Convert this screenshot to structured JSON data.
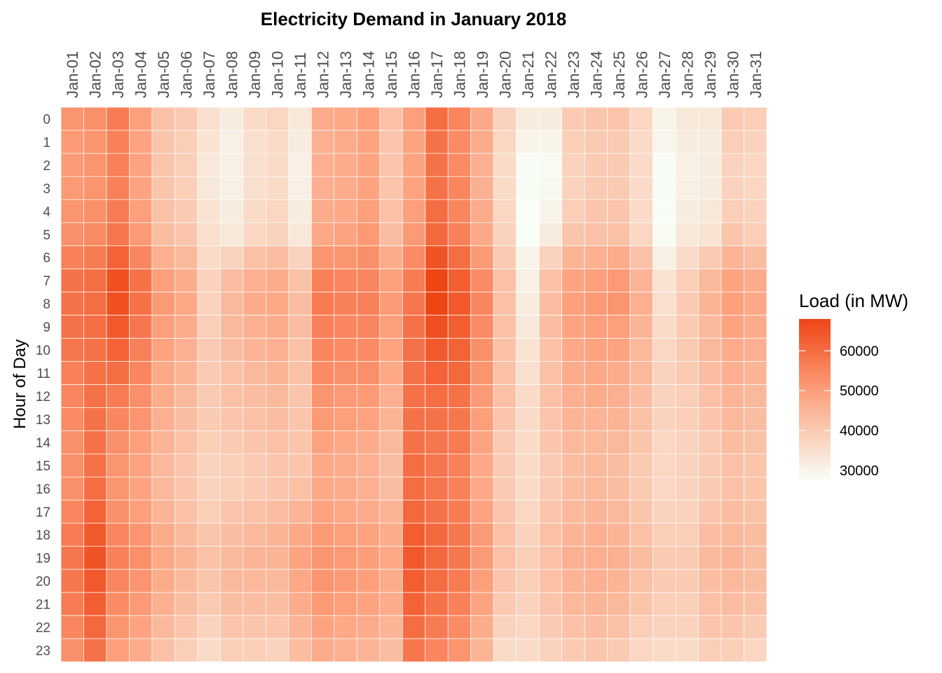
{
  "chart_data": {
    "type": "heatmap",
    "title": "Electricity Demand in January 2018",
    "xlabel": "",
    "ylabel": "Hour of Day",
    "x_categories": [
      "Jan-01",
      "Jan-02",
      "Jan-03",
      "Jan-04",
      "Jan-05",
      "Jan-06",
      "Jan-07",
      "Jan-08",
      "Jan-09",
      "Jan-10",
      "Jan-11",
      "Jan-12",
      "Jan-13",
      "Jan-14",
      "Jan-15",
      "Jan-16",
      "Jan-17",
      "Jan-18",
      "Jan-19",
      "Jan-20",
      "Jan-21",
      "Jan-22",
      "Jan-23",
      "Jan-24",
      "Jan-25",
      "Jan-26",
      "Jan-27",
      "Jan-28",
      "Jan-29",
      "Jan-30",
      "Jan-31"
    ],
    "y_categories": [
      "0",
      "1",
      "2",
      "3",
      "4",
      "5",
      "6",
      "7",
      "8",
      "9",
      "10",
      "11",
      "12",
      "13",
      "14",
      "15",
      "16",
      "17",
      "18",
      "19",
      "20",
      "21",
      "22",
      "23"
    ],
    "values": [
      [
        52000,
        53000,
        57000,
        50000,
        42000,
        40000,
        35000,
        32000,
        36000,
        37000,
        33000,
        47000,
        48000,
        50000,
        42000,
        50000,
        60000,
        55000,
        48000,
        38000,
        32000,
        32000,
        40000,
        41000,
        41000,
        37000,
        30000,
        33000,
        33000,
        40000,
        39000
      ],
      [
        51000,
        52000,
        56000,
        49000,
        41000,
        39000,
        34000,
        31000,
        35000,
        36000,
        32000,
        46000,
        47000,
        49000,
        41000,
        49000,
        59000,
        54000,
        47000,
        37000,
        30000,
        30000,
        39000,
        40000,
        40000,
        36000,
        29500,
        32000,
        32000,
        39000,
        38000
      ],
      [
        51000,
        52000,
        56000,
        49000,
        41000,
        39000,
        33000,
        31000,
        35000,
        36000,
        31000,
        46000,
        47000,
        49000,
        41000,
        49000,
        59000,
        54000,
        46000,
        36000,
        28000,
        28500,
        38000,
        40000,
        40000,
        36000,
        28000,
        31000,
        32000,
        38000,
        37000
      ],
      [
        51000,
        52000,
        56000,
        49000,
        41000,
        39000,
        33000,
        31000,
        35000,
        36000,
        31000,
        46000,
        47000,
        49000,
        41000,
        49000,
        59000,
        55000,
        46000,
        36000,
        28000,
        29000,
        38000,
        40000,
        40000,
        36000,
        28000,
        31000,
        32000,
        38000,
        37000
      ],
      [
        52000,
        53000,
        57000,
        50000,
        42000,
        40000,
        34000,
        32000,
        36000,
        37000,
        32000,
        47000,
        48000,
        50000,
        42000,
        50000,
        60000,
        55000,
        47000,
        37000,
        27500,
        30000,
        39000,
        41000,
        41000,
        36000,
        28000,
        32000,
        33000,
        39000,
        38000
      ],
      [
        53000,
        54000,
        58000,
        51000,
        43000,
        41000,
        35000,
        33000,
        37000,
        38000,
        33000,
        48000,
        49000,
        51000,
        43000,
        51000,
        61000,
        56000,
        48000,
        38000,
        27500,
        32000,
        41000,
        42000,
        42000,
        37000,
        28500,
        33000,
        34000,
        41000,
        39000
      ],
      [
        56000,
        57000,
        62000,
        55000,
        46000,
        44000,
        36000,
        38000,
        42000,
        43000,
        38000,
        52000,
        52000,
        53000,
        47000,
        54000,
        65000,
        60000,
        51000,
        40000,
        30000,
        38000,
        45000,
        46000,
        47000,
        42000,
        31000,
        36000,
        40000,
        45000,
        43000
      ],
      [
        59000,
        60000,
        66000,
        59000,
        50000,
        47000,
        38000,
        43000,
        46000,
        47000,
        42000,
        56000,
        55000,
        55000,
        50000,
        57000,
        68000,
        63000,
        54000,
        42000,
        31000,
        42000,
        49000,
        50000,
        51000,
        45000,
        34000,
        39000,
        44000,
        49000,
        47000
      ],
      [
        59000,
        60000,
        66000,
        59000,
        51000,
        48000,
        38000,
        44000,
        47000,
        48000,
        43000,
        57000,
        56000,
        56000,
        51000,
        58000,
        68000,
        64000,
        55000,
        42000,
        32000,
        43000,
        50000,
        51000,
        52000,
        46000,
        35000,
        40000,
        45000,
        50000,
        48000
      ],
      [
        59000,
        60000,
        64000,
        58000,
        50000,
        47000,
        39000,
        44000,
        46000,
        47000,
        43000,
        56000,
        55000,
        55000,
        50000,
        59000,
        66000,
        63000,
        54000,
        42000,
        33000,
        43000,
        49000,
        50000,
        50000,
        45000,
        36000,
        40000,
        44000,
        49000,
        47000
      ],
      [
        58000,
        59000,
        62000,
        56000,
        49000,
        46000,
        40000,
        43000,
        45000,
        46000,
        42000,
        55000,
        54000,
        54000,
        49000,
        59000,
        64000,
        62000,
        53000,
        42000,
        34000,
        42000,
        48000,
        49000,
        49000,
        44000,
        37000,
        40000,
        44000,
        47000,
        46000
      ],
      [
        56000,
        59000,
        60000,
        55000,
        48000,
        45000,
        40000,
        42000,
        44000,
        45000,
        42000,
        54000,
        53000,
        53000,
        48000,
        59000,
        62000,
        61000,
        52000,
        42000,
        35000,
        42000,
        47000,
        48000,
        47000,
        44000,
        38000,
        40000,
        43000,
        46000,
        45000
      ],
      [
        55000,
        59000,
        57000,
        53000,
        47000,
        44000,
        40000,
        42000,
        43000,
        44000,
        41000,
        52000,
        51000,
        51000,
        46000,
        59000,
        60000,
        59000,
        51000,
        42000,
        36000,
        42000,
        46000,
        47000,
        46000,
        43000,
        38000,
        39000,
        42000,
        45000,
        44000
      ],
      [
        54000,
        59000,
        55000,
        52000,
        46000,
        43000,
        40000,
        41000,
        42000,
        43000,
        41000,
        51000,
        50000,
        49000,
        45000,
        59000,
        59000,
        58000,
        50000,
        41000,
        36000,
        41000,
        45000,
        45000,
        45000,
        42000,
        38000,
        39000,
        41000,
        44000,
        43000
      ],
      [
        53000,
        59000,
        53000,
        50000,
        45000,
        42000,
        39000,
        40000,
        41000,
        42000,
        41000,
        49000,
        48000,
        47000,
        44000,
        59000,
        58000,
        57000,
        49000,
        40000,
        36000,
        41000,
        44000,
        44000,
        44000,
        41000,
        37000,
        38000,
        40000,
        43000,
        42000
      ],
      [
        53000,
        59000,
        52000,
        49000,
        44000,
        41000,
        38000,
        39000,
        40000,
        41000,
        41000,
        48000,
        47000,
        46000,
        43000,
        60000,
        58000,
        56000,
        48000,
        40000,
        36000,
        40000,
        43000,
        44000,
        43000,
        40000,
        37000,
        38000,
        40000,
        42000,
        41000
      ],
      [
        53000,
        60000,
        52000,
        49000,
        44000,
        41000,
        38000,
        39000,
        40000,
        41000,
        42000,
        48000,
        47000,
        46000,
        43000,
        60000,
        58000,
        56000,
        48000,
        40000,
        36000,
        40000,
        43000,
        44000,
        43000,
        40000,
        37000,
        38000,
        40000,
        42000,
        41000
      ],
      [
        55000,
        62000,
        53000,
        50000,
        45000,
        42000,
        39000,
        41000,
        42000,
        43000,
        45000,
        49000,
        48000,
        47000,
        45000,
        61000,
        59000,
        57000,
        49000,
        41000,
        37000,
        41000,
        44000,
        45000,
        44000,
        41000,
        38000,
        38000,
        41000,
        43000,
        42000
      ],
      [
        57000,
        64000,
        55000,
        52000,
        47000,
        44000,
        41000,
        43000,
        44000,
        45000,
        48000,
        51000,
        50000,
        49000,
        47000,
        63000,
        61000,
        58000,
        51000,
        42000,
        38000,
        42000,
        45000,
        46000,
        45000,
        42000,
        39000,
        39000,
        43000,
        44000,
        43000
      ],
      [
        58000,
        65000,
        56000,
        53000,
        48000,
        45000,
        42000,
        44000,
        45000,
        45000,
        49000,
        52000,
        51000,
        50000,
        48000,
        64000,
        61000,
        58000,
        51000,
        42000,
        39000,
        42000,
        46000,
        46000,
        46000,
        43000,
        40000,
        40000,
        44000,
        45000,
        43000
      ],
      [
        58000,
        64000,
        55000,
        52000,
        47000,
        44000,
        41000,
        44000,
        44000,
        44000,
        48000,
        52000,
        51000,
        50000,
        47000,
        63000,
        60000,
        57000,
        50000,
        41000,
        39000,
        42000,
        45000,
        46000,
        45000,
        42000,
        40000,
        40000,
        43000,
        44000,
        43000
      ],
      [
        57000,
        63000,
        54000,
        51000,
        46000,
        43000,
        40000,
        43000,
        43000,
        43000,
        47000,
        51000,
        50000,
        49000,
        47000,
        62000,
        59000,
        56000,
        49000,
        40000,
        38000,
        41000,
        44000,
        45000,
        44000,
        41000,
        39000,
        39000,
        42000,
        43000,
        42000
      ],
      [
        55000,
        61000,
        52000,
        49000,
        44000,
        41000,
        38000,
        41000,
        41000,
        41000,
        45000,
        49000,
        48000,
        47000,
        45000,
        60000,
        57000,
        54000,
        47000,
        38000,
        37000,
        40000,
        42000,
        43000,
        42000,
        39000,
        38000,
        38000,
        41000,
        41000,
        40000
      ],
      [
        53000,
        59000,
        50000,
        47000,
        42000,
        39000,
        36000,
        39000,
        39000,
        38000,
        43000,
        47000,
        46000,
        45000,
        43000,
        58000,
        55000,
        52000,
        45000,
        36000,
        36000,
        38000,
        40000,
        41000,
        40000,
        37000,
        36000,
        36000,
        39000,
        39000,
        37000
      ]
    ],
    "color_scale": {
      "low": "#f7fff7",
      "mid": "#fda07c",
      "high": "#ee4515",
      "min": 27500,
      "max": 68000
    },
    "legend": {
      "title": "Load (in MW)",
      "ticks": [
        30000,
        40000,
        50000,
        60000
      ],
      "placement": "right"
    },
    "grid": false
  }
}
